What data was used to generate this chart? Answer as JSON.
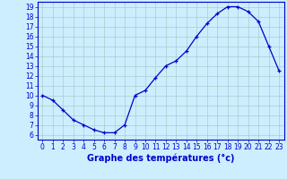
{
  "x": [
    0,
    1,
    2,
    3,
    4,
    5,
    6,
    7,
    8,
    9,
    10,
    11,
    12,
    13,
    14,
    15,
    16,
    17,
    18,
    19,
    20,
    21,
    22,
    23
  ],
  "y": [
    10,
    9.5,
    8.5,
    7.5,
    7,
    6.5,
    6.2,
    6.2,
    7,
    10,
    10.5,
    11.8,
    13,
    13.5,
    14.5,
    16,
    17.3,
    18.3,
    19,
    19,
    18.5,
    17.5,
    15,
    12.5
  ],
  "xlim": [
    -0.5,
    23.5
  ],
  "ylim": [
    5.5,
    19.5
  ],
  "yticks": [
    6,
    7,
    8,
    9,
    10,
    11,
    12,
    13,
    14,
    15,
    16,
    17,
    18,
    19
  ],
  "xticks": [
    0,
    1,
    2,
    3,
    4,
    5,
    6,
    7,
    8,
    9,
    10,
    11,
    12,
    13,
    14,
    15,
    16,
    17,
    18,
    19,
    20,
    21,
    22,
    23
  ],
  "xlabel": "Graphe des températures (°c)",
  "line_color": "#0000cc",
  "bg_color": "#cceeff",
  "grid_color": "#aacccc",
  "tick_color": "#0000cc",
  "tick_fontsize": 5.5,
  "xlabel_fontsize": 7.0,
  "linewidth": 0.9,
  "markersize": 3.5
}
